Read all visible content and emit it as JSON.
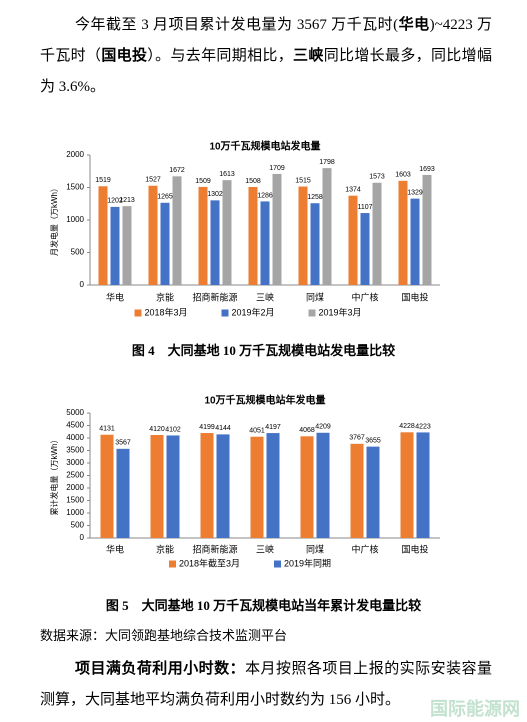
{
  "paragraphs": [
    {
      "runs": [
        {
          "text": "今年截至 3 月项目累计发电量为 3567 万千瓦时("
        },
        {
          "text": "华电",
          "bold": true
        },
        {
          "text": ")~4223 万千瓦时（"
        },
        {
          "text": "国电投",
          "bold": true
        },
        {
          "text": "）。与去年同期相比，"
        },
        {
          "text": "三峡",
          "bold": true
        },
        {
          "text": "同比增长最多，同比增幅为 3.6%。"
        }
      ]
    },
    {
      "runs": [
        {
          "text": "项目满负荷利用小时数：",
          "bold": true
        },
        {
          "text": "本月按照各项目上报的实际安装容量测算，大同基地平均满负荷利用小时数约为 156 小时。"
        }
      ]
    }
  ],
  "chart_data": [
    {
      "type": "bar",
      "title": "10万千瓦规模电站发电量",
      "y_label": "月发电量（万kWh）",
      "caption": "图 4　大同基地 10 万千瓦规模电站发电量比较",
      "categories": [
        "华电",
        "京能",
        "招商新能源",
        "三峡",
        "同煤",
        "中广核",
        "国电投"
      ],
      "series": [
        {
          "name": "2018年3月",
          "color": "#ed7d31",
          "values": [
            1519,
            1527,
            1509,
            1508,
            1515,
            1374,
            1603
          ]
        },
        {
          "name": "2019年2月",
          "color": "#4472c4",
          "values": [
            1202,
            1265,
            1302,
            1286,
            1258,
            1107,
            1329
          ]
        },
        {
          "name": "2019年3月",
          "color": "#a5a5a5",
          "values": [
            1213,
            1672,
            1613,
            1709,
            1798,
            1573,
            1693
          ]
        }
      ],
      "ylim": [
        0,
        2000
      ],
      "yticks": [
        0,
        500,
        1000,
        1500,
        2000
      ],
      "legend": "bottom"
    },
    {
      "type": "bar",
      "title": "10万千瓦规模电站年发电量",
      "y_label": "累计发电量（万kWh）",
      "caption": "图 5　大同基地 10 万千瓦规模电站当年累计发电量比较",
      "categories": [
        "华电",
        "京能",
        "招商新能源",
        "三峡",
        "同煤",
        "中广核",
        "国电投"
      ],
      "series": [
        {
          "name": "2018年截至3月",
          "color": "#ed7d31",
          "values": [
            4131,
            4120,
            4199,
            4051,
            4068,
            3767,
            4228
          ]
        },
        {
          "name": "2019年同期",
          "color": "#4472c4",
          "values": [
            3567,
            4102,
            4144,
            4197,
            4209,
            3655,
            4223
          ]
        }
      ],
      "ylim": [
        0,
        5000
      ],
      "yticks": [
        0,
        500,
        1000,
        1500,
        2000,
        2500,
        3000,
        3500,
        4000,
        4500,
        5000
      ],
      "legend": "bottom"
    }
  ],
  "source": "数据来源：大同领跑基地综合技术监测平台",
  "watermark": "国际能源网"
}
